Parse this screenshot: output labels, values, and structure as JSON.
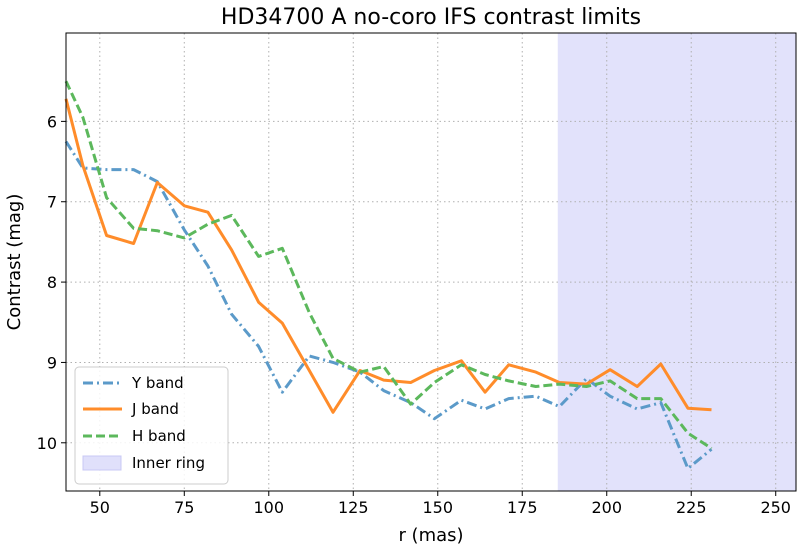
{
  "chart_data": {
    "type": "line",
    "title": "HD34700 A no-coro IFS contrast limits",
    "xlabel": "r (mas)",
    "ylabel": "Contrast (mag)",
    "xlim": [
      40,
      256
    ],
    "ylim": [
      10.6,
      4.9
    ],
    "y_inverted": true,
    "xticks": [
      50,
      75,
      100,
      125,
      150,
      175,
      200,
      225,
      250
    ],
    "yticks": [
      6,
      7,
      8,
      9,
      10
    ],
    "grid": true,
    "legend_position": "lower-left",
    "shaded_region": {
      "name": "Inner ring",
      "x_range": [
        185.5,
        256
      ],
      "color": "#e0e0fb"
    },
    "series": [
      {
        "name": "Y band",
        "color": "#5b9ac9",
        "style": "dashdot",
        "x": [
          40,
          45,
          52,
          60,
          67,
          75,
          82,
          89,
          97,
          104,
          112,
          119,
          127,
          134,
          142,
          149,
          157,
          164,
          171,
          179,
          186,
          194,
          201,
          209,
          216,
          224,
          231
        ],
        "y": [
          6.25,
          6.58,
          6.6,
          6.6,
          6.75,
          7.35,
          7.8,
          8.4,
          8.8,
          9.37,
          8.92,
          9.0,
          9.12,
          9.35,
          9.5,
          9.7,
          9.47,
          9.58,
          9.45,
          9.42,
          9.55,
          9.2,
          9.42,
          9.58,
          9.5,
          10.32,
          10.08
        ]
      },
      {
        "name": "J band",
        "color": "#ff8c2a",
        "style": "solid",
        "x": [
          40,
          45,
          52,
          60,
          67,
          75,
          82,
          89,
          97,
          104,
          112,
          119,
          127,
          134,
          142,
          149,
          157,
          164,
          171,
          179,
          186,
          194,
          201,
          209,
          216,
          224,
          231
        ],
        "y": [
          5.72,
          6.55,
          7.42,
          7.52,
          6.76,
          7.05,
          7.13,
          7.6,
          8.25,
          8.51,
          9.1,
          9.62,
          9.1,
          9.22,
          9.25,
          9.1,
          8.98,
          9.37,
          9.03,
          9.12,
          9.25,
          9.27,
          9.09,
          9.3,
          9.02,
          9.57,
          9.59
        ]
      },
      {
        "name": "H band",
        "color": "#5cb85c",
        "style": "dashed",
        "x": [
          40,
          45,
          52,
          60,
          67,
          75,
          82,
          89,
          97,
          104,
          112,
          119,
          127,
          134,
          142,
          149,
          157,
          164,
          171,
          179,
          186,
          194,
          201,
          209,
          216,
          224,
          231
        ],
        "y": [
          5.5,
          5.95,
          6.95,
          7.33,
          7.36,
          7.45,
          7.28,
          7.17,
          7.68,
          7.58,
          8.38,
          8.95,
          9.12,
          9.05,
          9.52,
          9.25,
          9.03,
          9.15,
          9.23,
          9.3,
          9.27,
          9.3,
          9.23,
          9.45,
          9.45,
          9.88,
          10.07
        ]
      }
    ]
  }
}
